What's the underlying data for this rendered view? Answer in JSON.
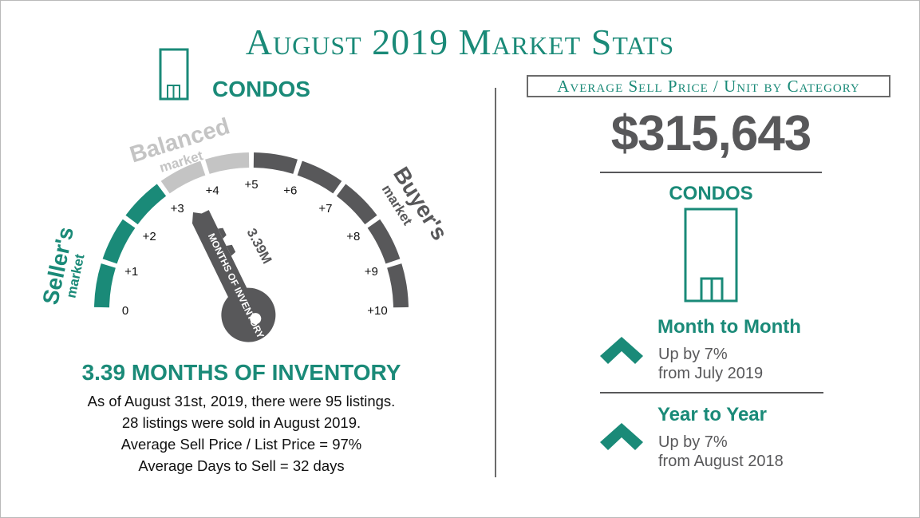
{
  "title": "August 2019 Market Stats",
  "category": "CONDOS",
  "gauge": {
    "balanced_label": "Balanced",
    "balanced_sub": "market",
    "sellers_label": "Seller's",
    "sellers_sub": "market",
    "buyers_label": "Buyer's",
    "buyers_sub": "market",
    "ticks": [
      "0",
      "+1",
      "+2",
      "+3",
      "+4",
      "+5",
      "+6",
      "+7",
      "+8",
      "+9",
      "+10"
    ],
    "value": 3.39,
    "key_value_label": "3.39M",
    "key_caption": "MONTHS OF INVENTORY"
  },
  "inventory": {
    "heading": "3.39 MONTHS OF INVENTORY",
    "lines": [
      "As of August 31st, 2019, there were 95 listings.",
      "28 listings were sold in August 2019.",
      "Average Sell Price / List Price = 97%",
      "Average Days to Sell = 32 days"
    ]
  },
  "right": {
    "box_label": "Average Sell Price / Unit by Category",
    "price": "$315,643",
    "category": "CONDOS",
    "month_to_month": {
      "title": "Month to Month",
      "line1": "Up by 7%",
      "line2": "from July 2019",
      "direction": "up"
    },
    "year_to_year": {
      "title": "Year to Year",
      "line1": "Up by 7%",
      "line2": "from August 2018",
      "direction": "up"
    }
  },
  "colors": {
    "teal": "#1a8a78",
    "dark_gray": "#58585a",
    "light_gray": "#c4c4c4"
  }
}
